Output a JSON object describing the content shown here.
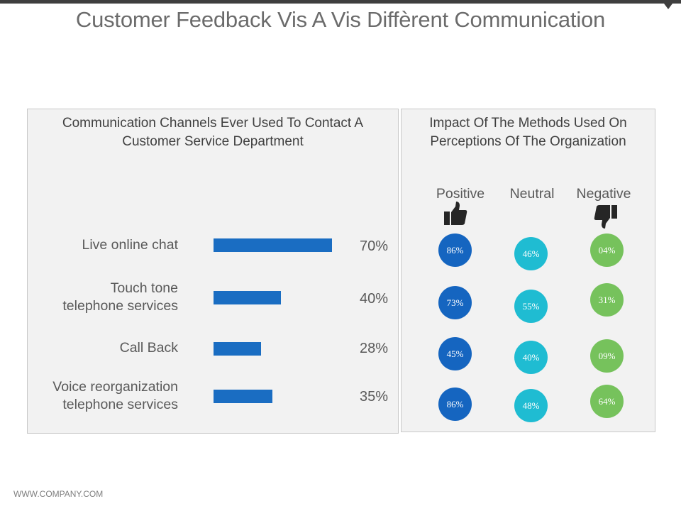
{
  "title": "Customer Feedback Vis A Vis Diffèrent Communication",
  "footer": "WWW.COMPANY.COM",
  "colors": {
    "bar": "#1a6dc2",
    "positive": "#1565c0",
    "neutral": "#1fbcd2",
    "negative": "#76c25c"
  },
  "chart_data": [
    {
      "type": "bar",
      "orientation": "horizontal",
      "title": "Communication Channels Ever Used To Contact A Customer Service Department",
      "categories": [
        "Live online chat",
        "Touch tone telephone services",
        "Call Back",
        "Voice reorganization telephone services"
      ],
      "category_lines": [
        [
          "Live online chat"
        ],
        [
          "Touch tone",
          "telephone services"
        ],
        [
          "Call Back"
        ],
        [
          "Voice reorganization",
          "telephone services"
        ]
      ],
      "values": [
        70,
        40,
        28,
        35
      ],
      "value_labels": [
        "70%",
        "40%",
        "28%",
        "35%"
      ]
    },
    {
      "type": "table",
      "title": "Impact Of The Methods Used On Perceptions Of The Organization",
      "columns": [
        "Positive",
        "Neutral",
        "Negative"
      ],
      "values": [
        [
          "86%",
          "46%",
          "04%"
        ],
        [
          "73%",
          "55%",
          "31%"
        ],
        [
          "45%",
          "40%",
          "09%"
        ],
        [
          "86%",
          "48%",
          "64%"
        ]
      ]
    }
  ]
}
